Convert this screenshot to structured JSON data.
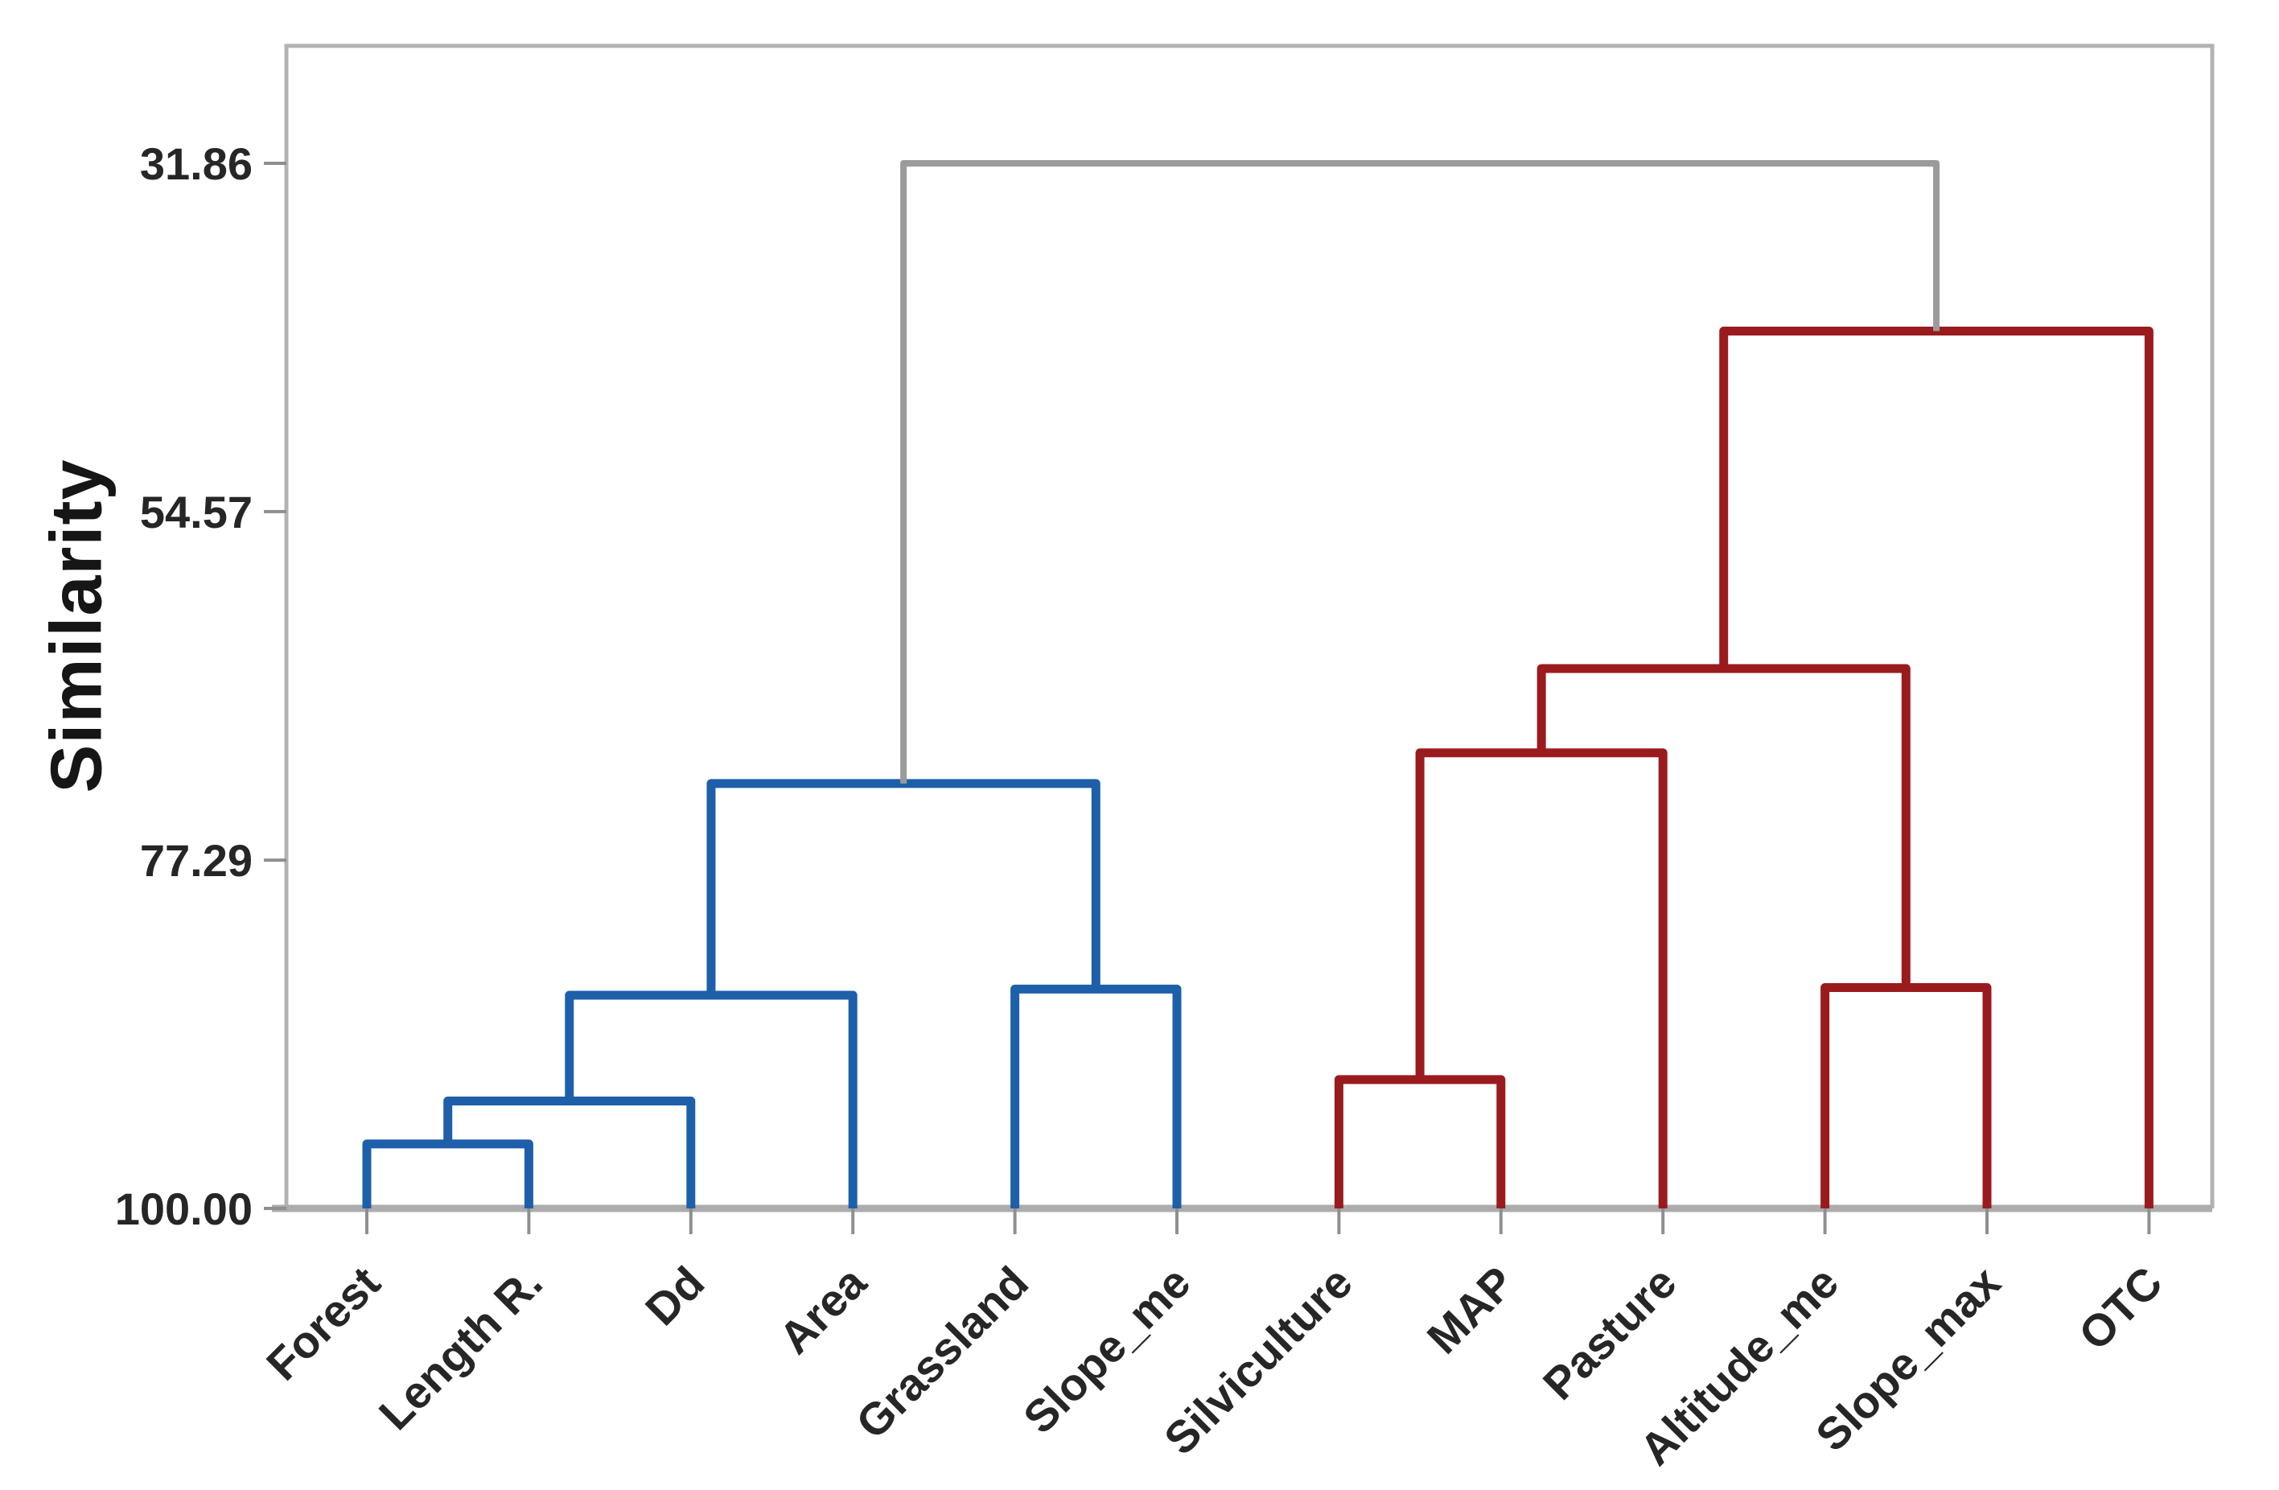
{
  "figure": {
    "kind": "hierarchical-clustering-dendrogram"
  },
  "chart_data": {
    "type": "dendrogram",
    "title": "",
    "xlabel": "",
    "ylabel": "Similarity",
    "y_axis": {
      "tick_labels": [
        "31.86",
        "54.57",
        "77.29",
        "100.00"
      ],
      "tick_values": [
        31.86,
        54.57,
        77.29,
        100.0
      ],
      "min": 31.86,
      "max": 100.0,
      "orientation": "values increase downward (100 = identical, at baseline)"
    },
    "leaves": [
      "Forest",
      "Length R.",
      "Dd",
      "Area",
      "Grassland",
      "Slope_me",
      "Silviculture",
      "MAP",
      "Pasture",
      "Altitude_me",
      "Slope_max",
      "OTC"
    ],
    "merges": [
      {
        "id": "M1",
        "left": "Forest",
        "right": "Length R.",
        "similarity": 95.8,
        "color_key": "cluster1"
      },
      {
        "id": "M2",
        "left": "M1",
        "right": "Dd",
        "similarity": 93.0,
        "color_key": "cluster1"
      },
      {
        "id": "M3",
        "left": "M2",
        "right": "Area",
        "similarity": 86.1,
        "color_key": "cluster1"
      },
      {
        "id": "M4",
        "left": "Grassland",
        "right": "Slope_me",
        "similarity": 85.7,
        "color_key": "cluster1"
      },
      {
        "id": "M5",
        "left": "M3",
        "right": "M4",
        "similarity": 72.3,
        "color_key": "cluster1"
      },
      {
        "id": "M6",
        "left": "Silviculture",
        "right": "MAP",
        "similarity": 91.6,
        "color_key": "cluster2"
      },
      {
        "id": "M7",
        "left": "M6",
        "right": "Pasture",
        "similarity": 70.3,
        "color_key": "cluster2"
      },
      {
        "id": "M8",
        "left": "Altitude_me",
        "right": "Slope_max",
        "similarity": 85.6,
        "color_key": "cluster2"
      },
      {
        "id": "M9",
        "left": "M7",
        "right": "M8",
        "similarity": 64.8,
        "color_key": "cluster2"
      },
      {
        "id": "M10",
        "left": "M9",
        "right": "OTC",
        "similarity": 42.8,
        "color_key": "cluster2"
      },
      {
        "id": "M11",
        "left": "M5",
        "right": "M10",
        "similarity": 31.86,
        "color_key": "root"
      }
    ],
    "colors": {
      "cluster1": "#1E5FAA",
      "cluster2": "#9A1B1E",
      "root": "#9B9B9B",
      "frame": "#B3B3B3",
      "baseline": "#ACACAC",
      "tick": "#8F8F8F",
      "label": "#262626",
      "axis_title": "#161616"
    },
    "layout_hints": {
      "grid": false,
      "legend": false,
      "x_labels_rotation_deg": -45
    }
  }
}
